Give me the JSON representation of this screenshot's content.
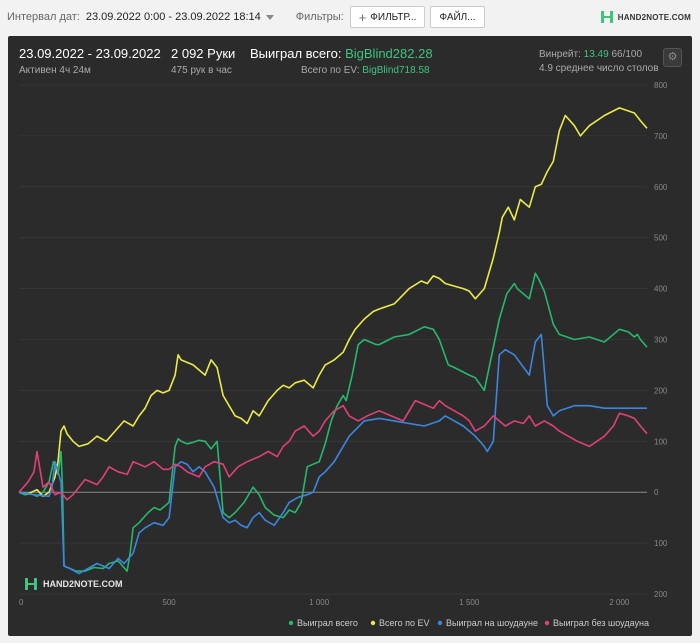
{
  "topbar": {
    "interval_label": "Интервал дат:",
    "interval_value": "23.09.2022 0:00 - 23.09.2022 18:14",
    "filters_label": "Фильтры:",
    "filter_button": "ФИЛЬТР...",
    "file_button": "ФАЙЛ...",
    "logo": "HAND2NOTE.COM"
  },
  "summary": {
    "dates": "23.09.2022 - 23.09.2022",
    "active": "Активен 4ч 24м",
    "hands": "2 092 Руки",
    "hands_per_hour": "475 рук в час",
    "won_label": "Выиграл всего:",
    "won_value": "BigBlind282.28",
    "ev_label": "Всего по EV:",
    "ev_value": "BigBlind718.58",
    "winrate_label": "Винрейт:",
    "winrate_value": "13.49",
    "winrate_suffix": "66/100",
    "tables": "4.9 среднее число столов"
  },
  "watermark": "HAND2NOTE.COM",
  "colors": {
    "won": "#26b86d",
    "ev": "#eaea48",
    "showdown": "#3b87e0",
    "nonshowdown": "#e0407a",
    "accent": "#3ec47f"
  },
  "chart_data": {
    "type": "line",
    "xlim": [
      0,
      2092
    ],
    "ylim": [
      -200,
      800
    ],
    "x_ticks": [
      0,
      500,
      1000,
      1500,
      2000
    ],
    "x_tick_labels": [
      "0",
      "500",
      "1 000",
      "1 500",
      "2 000"
    ],
    "y_ticks": [
      -200,
      -100,
      0,
      100,
      200,
      300,
      400,
      500,
      600,
      700,
      800
    ],
    "y_tick_labels": [
      "200",
      "100",
      "0",
      "100",
      "200",
      "300",
      "400",
      "500",
      "600",
      "700",
      "800"
    ],
    "grid": true,
    "legend_position": "bottom-right",
    "series": [
      {
        "name": "Выиграл всего",
        "color_key": "won",
        "x": [
          0,
          20,
          40,
          60,
          80,
          100,
          115,
          130,
          140,
          145,
          150,
          170,
          190,
          220,
          250,
          280,
          300,
          330,
          360,
          370,
          380,
          400,
          430,
          450,
          470,
          500,
          520,
          530,
          540,
          560,
          580,
          600,
          620,
          640,
          660,
          680,
          700,
          720,
          750,
          780,
          800,
          820,
          850,
          880,
          900,
          920,
          940,
          960,
          980,
          1000,
          1020,
          1040,
          1060,
          1080,
          1090,
          1110,
          1130,
          1150,
          1170,
          1190,
          1200,
          1250,
          1300,
          1350,
          1380,
          1400,
          1430,
          1450,
          1500,
          1520,
          1550,
          1600,
          1625,
          1650,
          1660,
          1700,
          1720,
          1730,
          1750,
          1780,
          1800,
          1850,
          1900,
          1950,
          2000,
          2030,
          2050,
          2060,
          2070,
          2092
        ],
        "y": [
          0,
          -5,
          -3,
          -8,
          0,
          20,
          60,
          35,
          80,
          10,
          -145,
          -150,
          -155,
          -155,
          -148,
          -150,
          -140,
          -135,
          -155,
          -120,
          -70,
          -60,
          -40,
          -30,
          -35,
          -20,
          90,
          105,
          100,
          95,
          98,
          102,
          100,
          85,
          100,
          -40,
          -50,
          -40,
          -20,
          10,
          -5,
          -30,
          -45,
          -50,
          -35,
          -40,
          -20,
          50,
          55,
          60,
          95,
          140,
          170,
          190,
          180,
          230,
          290,
          300,
          295,
          290,
          290,
          305,
          310,
          325,
          320,
          300,
          250,
          245,
          230,
          225,
          200,
          340,
          390,
          410,
          400,
          380,
          430,
          420,
          395,
          330,
          310,
          300,
          305,
          295,
          320,
          315,
          305,
          310,
          300,
          285
        ]
      },
      {
        "name": "Всего по EV",
        "color_key": "ev",
        "x": [
          0,
          30,
          60,
          80,
          100,
          120,
          130,
          140,
          150,
          160,
          180,
          200,
          230,
          260,
          290,
          320,
          350,
          380,
          400,
          420,
          440,
          460,
          480,
          500,
          520,
          530,
          540,
          560,
          580,
          600,
          620,
          640,
          660,
          680,
          700,
          720,
          740,
          760,
          780,
          800,
          830,
          860,
          880,
          900,
          920,
          950,
          980,
          1000,
          1020,
          1050,
          1080,
          1100,
          1120,
          1150,
          1180,
          1200,
          1250,
          1300,
          1340,
          1360,
          1380,
          1400,
          1420,
          1450,
          1480,
          1500,
          1520,
          1550,
          1580,
          1600,
          1610,
          1630,
          1650,
          1670,
          1680,
          1700,
          1720,
          1740,
          1760,
          1780,
          1800,
          1820,
          1850,
          1870,
          1900,
          1950,
          2000,
          2050,
          2070,
          2092
        ],
        "y": [
          0,
          -3,
          5,
          -8,
          0,
          30,
          60,
          120,
          130,
          115,
          100,
          90,
          95,
          110,
          100,
          120,
          140,
          130,
          150,
          165,
          190,
          200,
          195,
          200,
          230,
          270,
          260,
          255,
          250,
          240,
          230,
          260,
          245,
          190,
          170,
          150,
          145,
          135,
          160,
          150,
          180,
          200,
          210,
          205,
          215,
          220,
          205,
          230,
          250,
          260,
          275,
          300,
          320,
          340,
          355,
          360,
          370,
          400,
          415,
          410,
          425,
          420,
          410,
          405,
          400,
          395,
          380,
          400,
          460,
          510,
          540,
          560,
          535,
          575,
          570,
          560,
          600,
          605,
          630,
          650,
          710,
          740,
          720,
          700,
          720,
          740,
          755,
          745,
          730,
          715
        ]
      },
      {
        "name": "Выиграл на шоудауне",
        "color_key": "showdown",
        "x": [
          0,
          50,
          100,
          110,
          120,
          140,
          150,
          170,
          200,
          230,
          260,
          280,
          300,
          330,
          350,
          380,
          400,
          420,
          450,
          480,
          500,
          520,
          540,
          560,
          580,
          600,
          620,
          650,
          680,
          700,
          720,
          740,
          760,
          780,
          800,
          820,
          850,
          880,
          900,
          930,
          960,
          980,
          1000,
          1020,
          1050,
          1080,
          1100,
          1150,
          1200,
          1250,
          1300,
          1350,
          1400,
          1420,
          1450,
          1480,
          1500,
          1520,
          1550,
          1560,
          1580,
          1600,
          1620,
          1650,
          1700,
          1720,
          1740,
          1760,
          1780,
          1800,
          1850,
          1900,
          1950,
          2000,
          2050,
          2092
        ],
        "y": [
          0,
          -5,
          -8,
          10,
          60,
          20,
          -145,
          -150,
          -160,
          -150,
          -140,
          -145,
          -150,
          -130,
          -140,
          -120,
          -80,
          -70,
          -60,
          -65,
          -50,
          50,
          60,
          55,
          40,
          50,
          40,
          10,
          -50,
          -60,
          -55,
          -65,
          -70,
          -50,
          -40,
          -55,
          -65,
          -40,
          -20,
          -10,
          -5,
          0,
          30,
          40,
          60,
          90,
          110,
          140,
          145,
          140,
          135,
          130,
          140,
          150,
          140,
          130,
          120,
          110,
          90,
          80,
          100,
          270,
          280,
          270,
          230,
          295,
          310,
          170,
          150,
          160,
          170,
          170,
          165,
          165,
          165,
          165
        ]
      },
      {
        "name": "Выиграл без шоудауна",
        "color_key": "nonshowdown",
        "x": [
          0,
          30,
          50,
          60,
          80,
          100,
          120,
          140,
          160,
          180,
          200,
          220,
          240,
          260,
          280,
          300,
          330,
          360,
          380,
          400,
          420,
          450,
          480,
          500,
          520,
          540,
          560,
          580,
          600,
          620,
          650,
          680,
          700,
          730,
          760,
          800,
          830,
          860,
          880,
          900,
          920,
          950,
          980,
          1000,
          1020,
          1050,
          1080,
          1100,
          1130,
          1160,
          1200,
          1240,
          1280,
          1300,
          1320,
          1340,
          1360,
          1380,
          1400,
          1420,
          1450,
          1480,
          1500,
          1520,
          1550,
          1580,
          1600,
          1620,
          1650,
          1680,
          1700,
          1720,
          1750,
          1780,
          1800,
          1830,
          1860,
          1900,
          1950,
          1980,
          2000,
          2030,
          2050,
          2070,
          2092
        ],
        "y": [
          0,
          20,
          40,
          80,
          10,
          20,
          -5,
          0,
          -15,
          -5,
          10,
          25,
          20,
          15,
          30,
          50,
          40,
          35,
          60,
          55,
          50,
          60,
          45,
          45,
          55,
          50,
          40,
          35,
          30,
          50,
          60,
          55,
          30,
          50,
          60,
          70,
          80,
          70,
          90,
          100,
          120,
          130,
          110,
          120,
          140,
          160,
          170,
          150,
          140,
          150,
          160,
          150,
          140,
          160,
          180,
          175,
          170,
          165,
          180,
          170,
          160,
          150,
          140,
          120,
          130,
          150,
          140,
          130,
          140,
          135,
          150,
          130,
          140,
          130,
          120,
          110,
          100,
          90,
          110,
          130,
          155,
          150,
          145,
          130,
          115
        ]
      }
    ]
  }
}
